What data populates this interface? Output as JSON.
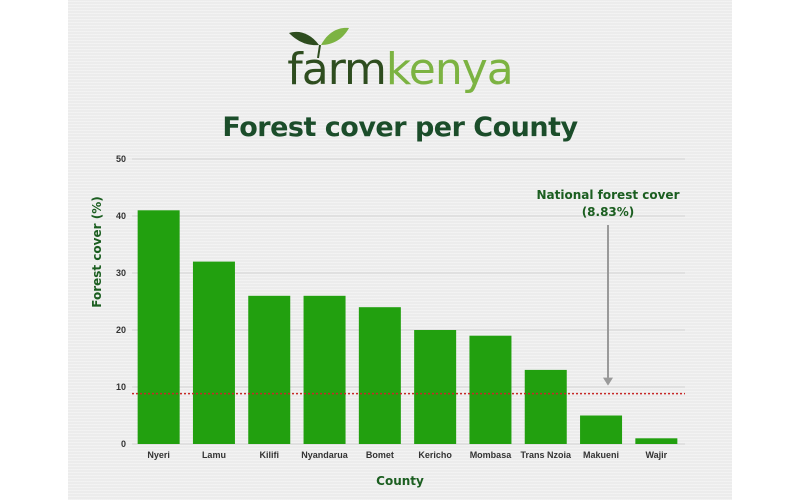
{
  "brand": {
    "name_part1": "farm",
    "name_part2": "kenya",
    "dark_green": "#2e4d1f",
    "light_green": "#7cb342",
    "logo_icon": "leaf-icon"
  },
  "chart_data": {
    "type": "bar",
    "title": "Forest cover per County",
    "xlabel": "County",
    "ylabel": "Forest cover (%)",
    "categories": [
      "Nyeri",
      "Lamu",
      "Kilifi",
      "Nyandarua",
      "Bomet",
      "Kericho",
      "Mombasa",
      "Trans Nzoia",
      "Makueni",
      "Wajir"
    ],
    "values": [
      41,
      32,
      26,
      26,
      24,
      20,
      19,
      13,
      5,
      1
    ],
    "ylim": [
      0,
      50
    ],
    "yticks": [
      0,
      10,
      20,
      30,
      40,
      50
    ],
    "grid": true,
    "bar_color": "#22a00f",
    "reference_line": {
      "value": 8.83,
      "color": "#c62828",
      "label_line1": "National forest cover",
      "label_line2": "(8.83%)"
    }
  }
}
